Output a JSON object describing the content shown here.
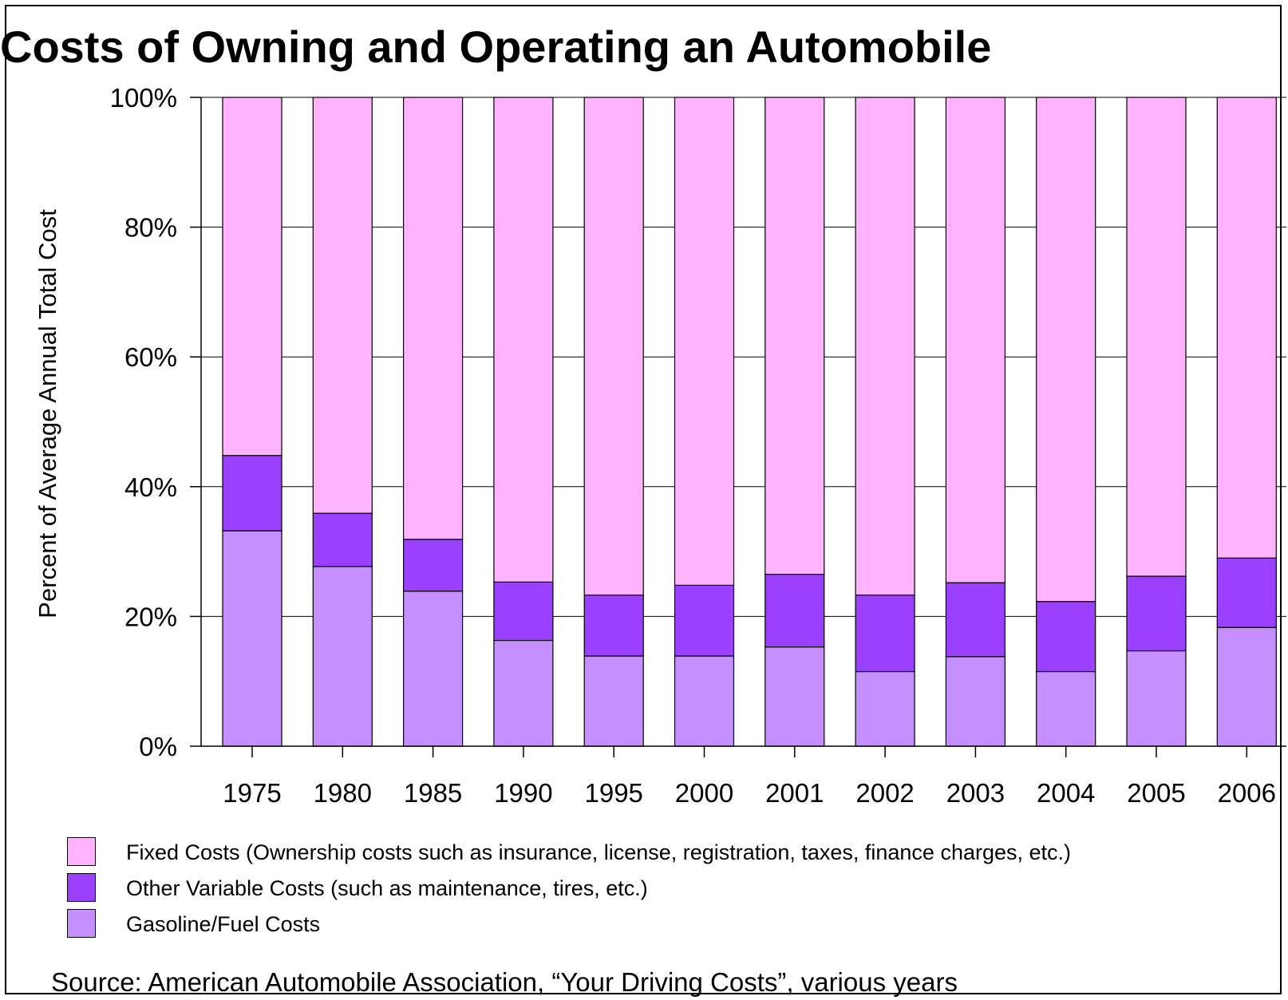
{
  "chart_data": {
    "type": "bar",
    "stacked": true,
    "title": "Costs of Owning and Operating an Automobile",
    "ylabel": "Percent of Average Annual Total Cost",
    "xlabel": "",
    "ylim": [
      0,
      100
    ],
    "yticks": [
      "0%",
      "20%",
      "40%",
      "60%",
      "80%",
      "100%"
    ],
    "ytick_values": [
      0,
      20,
      40,
      60,
      80,
      100
    ],
    "categories": [
      "1975",
      "1980",
      "1985",
      "1990",
      "1995",
      "2000",
      "2001",
      "2002",
      "2003",
      "2004",
      "2005",
      "2006"
    ],
    "series": [
      {
        "name": "Gasoline/Fuel Costs",
        "color": "#c58fff",
        "values": [
          33.2,
          27.7,
          23.9,
          16.3,
          13.9,
          13.9,
          15.3,
          11.5,
          13.8,
          11.5,
          14.7,
          18.3
        ]
      },
      {
        "name": "Other Variable Costs (such as maintenance, tires, etc.)",
        "color": "#9c40ff",
        "values": [
          11.6,
          8.2,
          8.0,
          9.0,
          9.4,
          10.9,
          11.2,
          11.8,
          11.4,
          10.8,
          11.5,
          10.7
        ]
      },
      {
        "name": "Fixed Costs (Ownership costs such as insurance, license, registration, taxes, finance charges, etc.)",
        "color": "#ffb3ff",
        "values": [
          55.2,
          64.1,
          68.1,
          74.7,
          76.7,
          75.2,
          73.5,
          76.7,
          74.8,
          77.7,
          73.8,
          71.0
        ]
      }
    ],
    "grid": true,
    "legend_position": "bottom"
  },
  "legend": [
    {
      "label": "Fixed Costs (Ownership costs such as insurance, license, registration, taxes, finance charges, etc.)",
      "color": "#ffb3ff"
    },
    {
      "label": "Other Variable Costs (such as maintenance, tires, etc.)",
      "color": "#9c40ff"
    },
    {
      "label": "Gasoline/Fuel Costs",
      "color": "#c58fff"
    }
  ],
  "source": "Source: American Automobile Association, “Your Driving Costs”, various years"
}
